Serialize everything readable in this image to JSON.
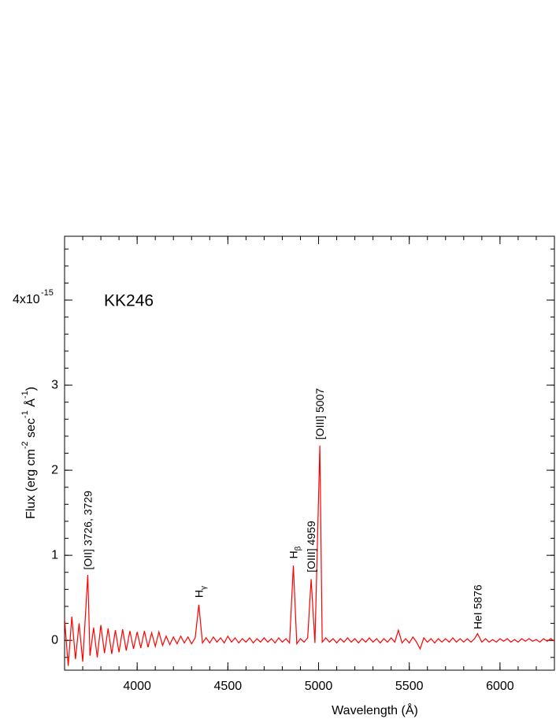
{
  "chart_data": {
    "type": "line",
    "title": "KK246",
    "x_label": "Wavelength (Å)",
    "y_label": [
      {
        "text": "Flux (erg cm"
      },
      {
        "text": "-2",
        "sup": true
      },
      {
        "text": " sec"
      },
      {
        "text": "-1",
        "sup": true
      },
      {
        "text": " Å"
      },
      {
        "text": "-1",
        "sup": true
      },
      {
        "text": ")"
      }
    ],
    "xlim": [
      3600,
      6300
    ],
    "ylim": [
      -0.35,
      4.75
    ],
    "xticks": [
      4000,
      4500,
      5000,
      5500,
      6000
    ],
    "yticks": [
      0,
      1,
      2,
      3,
      {
        "value": 4,
        "label": "4x10",
        "exponent": "-15"
      }
    ],
    "xminorticks": [
      3600,
      3700,
      3800,
      3900,
      4000,
      4100,
      4200,
      4300,
      4400,
      4500,
      4600,
      4700,
      4800,
      4900,
      5000,
      5100,
      5200,
      5300,
      5400,
      5500,
      5600,
      5700,
      5800,
      5900,
      6000,
      6100,
      6200,
      6300
    ],
    "yminorticks": [
      -0.2,
      0,
      0.2,
      0.4,
      0.6,
      0.8,
      1,
      1.2,
      1.4,
      1.6,
      1.8,
      2,
      2.2,
      2.4,
      2.6,
      2.8,
      3,
      3.2,
      3.4,
      3.6,
      3.8,
      4,
      4.2,
      4.4,
      4.6
    ],
    "x": [
      3600,
      3620,
      3640,
      3660,
      3680,
      3700,
      3728,
      3740,
      3760,
      3780,
      3800,
      3820,
      3840,
      3860,
      3880,
      3900,
      3920,
      3940,
      3960,
      3980,
      4000,
      4020,
      4040,
      4060,
      4080,
      4100,
      4120,
      4140,
      4160,
      4180,
      4200,
      4220,
      4240,
      4260,
      4280,
      4300,
      4320,
      4340,
      4360,
      4380,
      4400,
      4420,
      4440,
      4460,
      4480,
      4500,
      4520,
      4540,
      4560,
      4580,
      4600,
      4620,
      4640,
      4660,
      4680,
      4700,
      4720,
      4740,
      4760,
      4780,
      4800,
      4820,
      4840,
      4861,
      4880,
      4900,
      4920,
      4940,
      4959,
      4980,
      5007,
      5020,
      5040,
      5060,
      5080,
      5100,
      5120,
      5140,
      5160,
      5180,
      5200,
      5220,
      5240,
      5260,
      5280,
      5300,
      5320,
      5340,
      5360,
      5380,
      5400,
      5420,
      5440,
      5460,
      5480,
      5500,
      5520,
      5540,
      5560,
      5580,
      5600,
      5620,
      5640,
      5660,
      5680,
      5700,
      5720,
      5740,
      5760,
      5780,
      5800,
      5820,
      5840,
      5860,
      5876,
      5900,
      5920,
      5940,
      5960,
      5980,
      6000,
      6020,
      6040,
      6060,
      6080,
      6100,
      6120,
      6140,
      6160,
      6180,
      6200,
      6220,
      6240,
      6260,
      6280,
      6300
    ],
    "series": [
      {
        "color": "#ff0000",
        "values": [
          0.25,
          -0.3,
          0.28,
          -0.22,
          0.2,
          -0.25,
          0.77,
          -0.18,
          0.15,
          -0.2,
          0.18,
          -0.15,
          0.14,
          -0.16,
          0.12,
          -0.14,
          0.13,
          -0.12,
          0.11,
          -0.1,
          0.1,
          -0.09,
          0.11,
          -0.08,
          0.09,
          -0.07,
          0.1,
          -0.06,
          0.05,
          -0.05,
          0.04,
          -0.04,
          0.05,
          -0.03,
          0.04,
          -0.04,
          0.03,
          0.42,
          -0.03,
          0.03,
          -0.03,
          0.04,
          -0.02,
          0.03,
          -0.03,
          0.05,
          -0.02,
          0.03,
          -0.03,
          0.02,
          -0.02,
          0.03,
          -0.03,
          0.02,
          -0.02,
          0.03,
          -0.02,
          0.02,
          -0.03,
          0.03,
          -0.02,
          0.02,
          -0.03,
          0.88,
          -0.04,
          0.02,
          -0.02,
          0.03,
          0.72,
          -0.03,
          2.29,
          -0.02,
          0.03,
          -0.02,
          0.02,
          -0.03,
          0.02,
          -0.02,
          0.03,
          -0.02,
          0.02,
          -0.03,
          0.02,
          -0.02,
          0.03,
          -0.02,
          0.02,
          -0.03,
          0.02,
          -0.02,
          0.03,
          -0.02,
          0.12,
          -0.03,
          0.02,
          -0.03,
          0.04,
          -0.02,
          -0.1,
          0.03,
          -0.02,
          0.02,
          -0.03,
          0.02,
          -0.02,
          0.02,
          -0.02,
          0.03,
          -0.02,
          0.02,
          -0.02,
          0.02,
          -0.02,
          0.02,
          0.08,
          -0.02,
          0.02,
          -0.02,
          0.01,
          -0.02,
          0.02,
          -0.01,
          0.02,
          -0.02,
          0.01,
          -0.02,
          0.02,
          -0.01,
          0.02,
          -0.01,
          0.01,
          -0.02,
          0.02,
          -0.01,
          0.02,
          -0.01
        ]
      }
    ],
    "annotations": [
      {
        "text": "[OII] 3726, 3729",
        "x": 3728,
        "y": 0.83
      },
      {
        "text": "H",
        "subscript": "γ",
        "x": 4340,
        "y": 0.5
      },
      {
        "text": "H",
        "subscript": "β",
        "x": 4861,
        "y": 0.96
      },
      {
        "text": "[OIII] 4959",
        "x": 4959,
        "y": 0.8
      },
      {
        "text": "[OIII] 5007",
        "x": 5007,
        "y": 2.36
      },
      {
        "text": "HeI 5876",
        "x": 5876,
        "y": 0.13
      }
    ]
  }
}
